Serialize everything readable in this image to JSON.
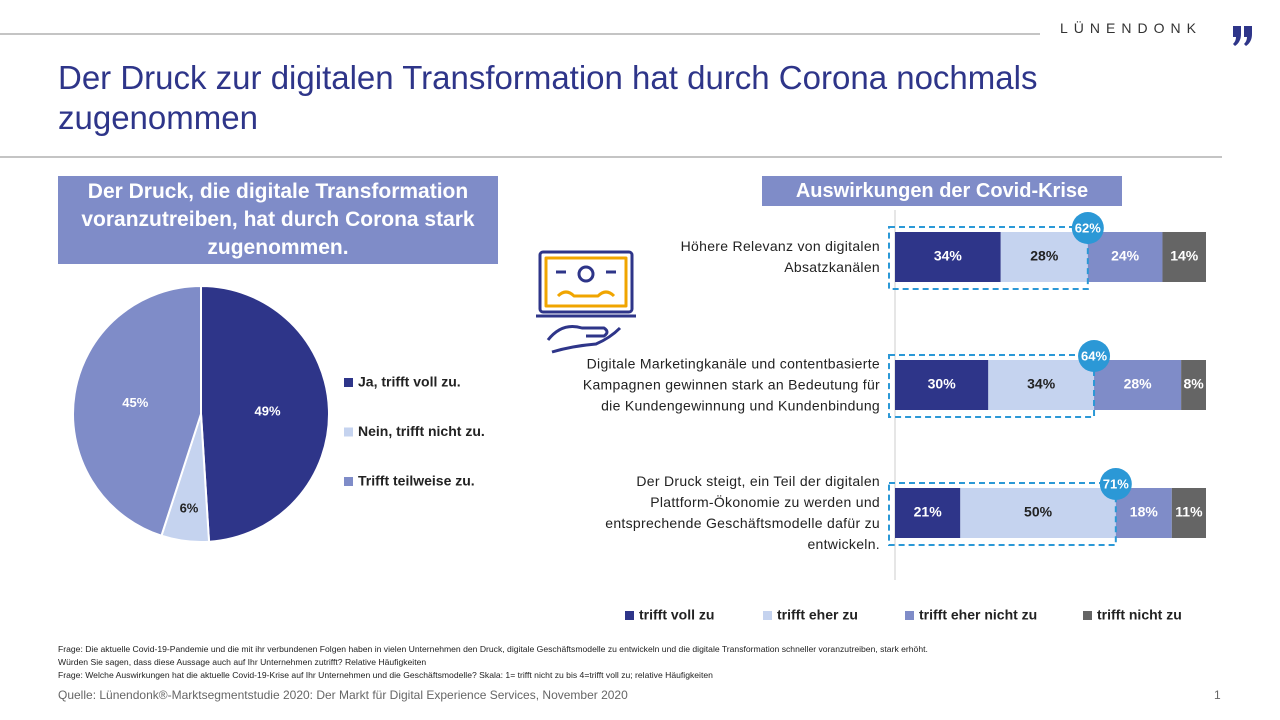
{
  "slide": {
    "logo": "LÜNENDONK",
    "title": "Der Druck zur digitalen Transformation hat durch Corona nochmals zugenommen",
    "footnotes": [
      "Frage: Die aktuelle Covid-19-Pandemie und die mit ihr verbundenen Folgen haben in vielen Unternehmen den Druck, digitale Geschäftsmodelle zu entwickeln und die digitale Transformation schneller voranzutreiben, stark erhöht.",
      "Würden Sie sagen, dass diese Aussage auch auf Ihr Unternehmen zutrifft? Relative Häufigkeiten",
      "Frage: Welche Auswirkungen hat die aktuelle Covid-19-Krise auf Ihr Unternehmen und die Geschäftsmodelle? Skala: 1= trifft nicht zu bis 4=trifft voll zu; relative Häufigkeiten"
    ],
    "source": "Quelle: Lünendonk®-Marktsegmentstudie 2020: Der Markt für Digital Experience Services, November 2020",
    "page": "1"
  },
  "chart_data": [
    {
      "type": "pie",
      "title": "Der Druck, die digitale Transformation voranzutreiben, hat durch Corona stark zugenommen.",
      "categories": [
        "Ja, trifft voll zu.",
        "Nein, trifft nicht zu.",
        "Trifft teilweise zu."
      ],
      "values": [
        49,
        6,
        45
      ],
      "value_labels": [
        "49%",
        "6%",
        "45%"
      ],
      "colors": [
        "#2e3589",
        "#c5d3ef",
        "#7f8cc8"
      ],
      "legend": "right"
    },
    {
      "type": "stacked-barh",
      "title": "Auswirkungen der Covid-Krise",
      "categories": [
        "Höhere Relevanz von digitalen Absatzkanälen",
        "Digitale Marketingkanäle und contentbasierte Kampagnen gewinnen stark an Bedeutung für die Kundengewinnung und Kundenbindung",
        "Der Druck steigt, ein Teil der digitalen Plattform-Ökonomie zu werden und entsprechende Geschäftsmodelle dafür zu entwickeln."
      ],
      "xlim": [
        0,
        100
      ],
      "series": [
        {
          "name": "trifft voll zu",
          "color": "#2e3589",
          "values": [
            34,
            30,
            21
          ],
          "value_labels": [
            "34%",
            "30%",
            "21%"
          ]
        },
        {
          "name": "trifft eher zu",
          "color": "#c5d3ef",
          "values": [
            28,
            34,
            50
          ],
          "value_labels": [
            "28%",
            "34%",
            "50%"
          ]
        },
        {
          "name": "trifft eher nicht zu",
          "color": "#7f8cc8",
          "values": [
            24,
            28,
            18
          ],
          "value_labels": [
            "24%",
            "28%",
            "18%"
          ]
        },
        {
          "name": "trifft nicht zu",
          "color": "#656565",
          "values": [
            14,
            8,
            11
          ],
          "value_labels": [
            "14%",
            "8%",
            "11%"
          ]
        }
      ],
      "top2_values": [
        62,
        64,
        71
      ],
      "top2_labels": [
        "62%",
        "64%",
        "71%"
      ],
      "top2_color": "#2b98d6",
      "legend": "bottom"
    }
  ]
}
